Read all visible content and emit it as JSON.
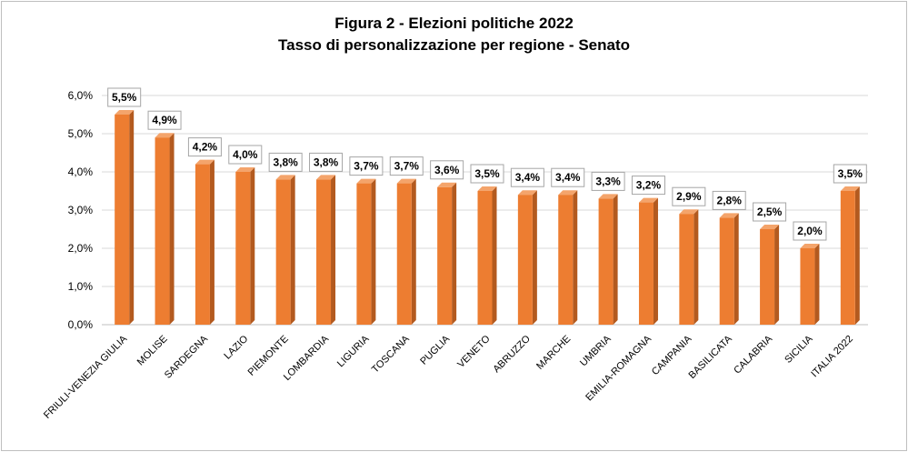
{
  "chart_data": {
    "type": "bar",
    "title": "Figura 2 - Elezioni politiche 2022",
    "subtitle": "Tasso di personalizzazione per regione - Senato",
    "categories": [
      "FRIULI-VENEZIA GIULIA",
      "MOLISE",
      "SARDEGNA",
      "LAZIO",
      "PIEMONTE",
      "LOMBARDIA",
      "LIGURIA",
      "TOSCANA",
      "PUGLIA",
      "VENETO",
      "ABRUZZO",
      "MARCHE",
      "UMBRIA",
      "EMILIA-ROMAGNA",
      "CAMPANIA",
      "BASILICATA",
      "CALABRIA",
      "SICILIA",
      "ITALIA  2022"
    ],
    "values": [
      5.5,
      4.9,
      4.2,
      4.0,
      3.8,
      3.8,
      3.7,
      3.7,
      3.6,
      3.5,
      3.4,
      3.4,
      3.3,
      3.2,
      2.9,
      2.8,
      2.5,
      2.0,
      3.5
    ],
    "data_labels": [
      "5,5%",
      "4,9%",
      "4,2%",
      "4,0%",
      "3,8%",
      "3,8%",
      "3,7%",
      "3,7%",
      "3,6%",
      "3,5%",
      "3,4%",
      "3,4%",
      "3,3%",
      "3,2%",
      "2,9%",
      "2,8%",
      "2,5%",
      "2,0%",
      "3,5%"
    ],
    "y_ticks": [
      0,
      1,
      2,
      3,
      4,
      5,
      6
    ],
    "y_tick_labels": [
      "0,0%",
      "1,0%",
      "2,0%",
      "3,0%",
      "4,0%",
      "5,0%",
      "6,0%"
    ],
    "ylim": [
      0,
      6
    ],
    "xlabel": "",
    "ylabel": "",
    "grid": true,
    "legend": "none"
  },
  "colors": {
    "bar_front": "#ED7D31",
    "bar_side": "#B35A1F",
    "bar_top": "#F4A46B",
    "grid": "#d9d9d9",
    "frame": "#bfbfbf"
  }
}
